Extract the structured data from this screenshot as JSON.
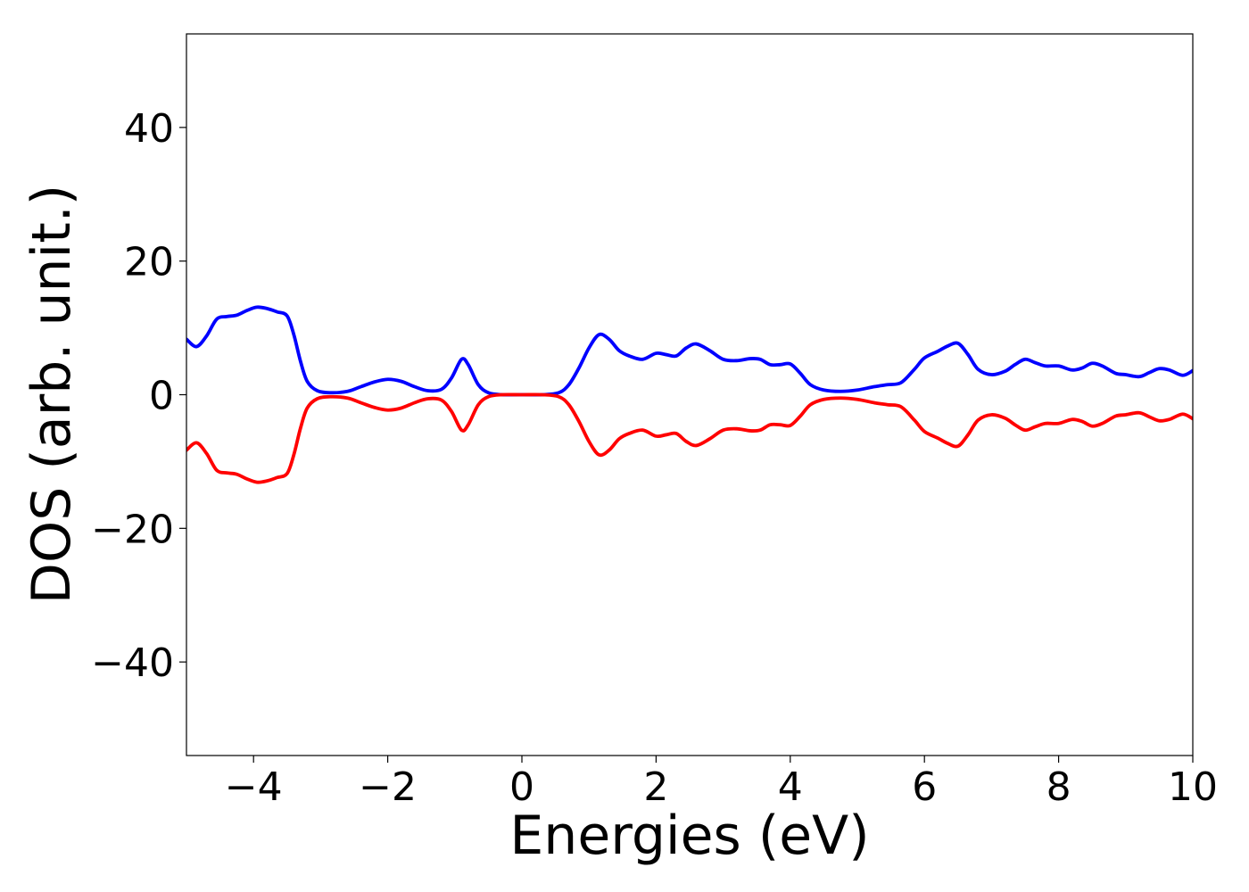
{
  "chart_data": {
    "type": "line",
    "title": "",
    "xlabel": "Energies (eV)",
    "ylabel": "DOS (arb. unit.)",
    "xlim": [
      -5,
      10
    ],
    "ylim": [
      -54,
      54
    ],
    "xticks": [
      -4,
      -2,
      0,
      2,
      4,
      6,
      8,
      10
    ],
    "xtick_labels": [
      "−4",
      "−2",
      "0",
      "2",
      "4",
      "6",
      "8",
      "10"
    ],
    "yticks": [
      -40,
      -20,
      0,
      20,
      40
    ],
    "ytick_labels": [
      "−40",
      "−20",
      "0",
      "20",
      "40"
    ],
    "grid": false,
    "series": [
      {
        "color": "#0000ff",
        "points": [
          [
            -5.0,
            8.3
          ],
          [
            -4.85,
            7.2
          ],
          [
            -4.7,
            8.8
          ],
          [
            -4.55,
            11.3
          ],
          [
            -4.4,
            11.7
          ],
          [
            -4.25,
            11.9
          ],
          [
            -4.1,
            12.6
          ],
          [
            -3.95,
            13.1
          ],
          [
            -3.8,
            12.9
          ],
          [
            -3.65,
            12.4
          ],
          [
            -3.5,
            11.8
          ],
          [
            -3.4,
            9.0
          ],
          [
            -3.3,
            5.0
          ],
          [
            -3.2,
            2.0
          ],
          [
            -3.05,
            0.6
          ],
          [
            -2.85,
            0.3
          ],
          [
            -2.6,
            0.5
          ],
          [
            -2.4,
            1.2
          ],
          [
            -2.2,
            1.9
          ],
          [
            -2.0,
            2.3
          ],
          [
            -1.8,
            2.0
          ],
          [
            -1.6,
            1.2
          ],
          [
            -1.4,
            0.6
          ],
          [
            -1.2,
            0.8
          ],
          [
            -1.05,
            2.5
          ],
          [
            -0.9,
            5.3
          ],
          [
            -0.8,
            4.5
          ],
          [
            -0.65,
            1.5
          ],
          [
            -0.5,
            0.3
          ],
          [
            -0.3,
            0.0
          ],
          [
            0.0,
            0.0
          ],
          [
            0.3,
            0.0
          ],
          [
            0.55,
            0.3
          ],
          [
            0.7,
            1.5
          ],
          [
            0.85,
            4.0
          ],
          [
            1.0,
            7.0
          ],
          [
            1.15,
            9.0
          ],
          [
            1.3,
            8.3
          ],
          [
            1.45,
            6.6
          ],
          [
            1.6,
            5.8
          ],
          [
            1.8,
            5.3
          ],
          [
            2.0,
            6.2
          ],
          [
            2.15,
            6.0
          ],
          [
            2.3,
            5.8
          ],
          [
            2.45,
            7.0
          ],
          [
            2.6,
            7.6
          ],
          [
            2.8,
            6.6
          ],
          [
            3.0,
            5.3
          ],
          [
            3.2,
            5.1
          ],
          [
            3.4,
            5.4
          ],
          [
            3.55,
            5.3
          ],
          [
            3.7,
            4.5
          ],
          [
            3.85,
            4.5
          ],
          [
            4.0,
            4.6
          ],
          [
            4.15,
            3.2
          ],
          [
            4.3,
            1.5
          ],
          [
            4.5,
            0.7
          ],
          [
            4.75,
            0.5
          ],
          [
            5.0,
            0.7
          ],
          [
            5.25,
            1.2
          ],
          [
            5.45,
            1.5
          ],
          [
            5.65,
            1.8
          ],
          [
            5.85,
            3.8
          ],
          [
            6.0,
            5.5
          ],
          [
            6.2,
            6.5
          ],
          [
            6.35,
            7.3
          ],
          [
            6.5,
            7.7
          ],
          [
            6.65,
            6.0
          ],
          [
            6.8,
            3.8
          ],
          [
            7.0,
            3.0
          ],
          [
            7.2,
            3.5
          ],
          [
            7.35,
            4.5
          ],
          [
            7.5,
            5.3
          ],
          [
            7.65,
            4.8
          ],
          [
            7.8,
            4.3
          ],
          [
            8.0,
            4.3
          ],
          [
            8.2,
            3.7
          ],
          [
            8.35,
            4.0
          ],
          [
            8.5,
            4.7
          ],
          [
            8.65,
            4.3
          ],
          [
            8.85,
            3.2
          ],
          [
            9.0,
            3.0
          ],
          [
            9.2,
            2.7
          ],
          [
            9.35,
            3.3
          ],
          [
            9.5,
            3.9
          ],
          [
            9.65,
            3.7
          ],
          [
            9.85,
            2.9
          ],
          [
            10.0,
            3.6
          ]
        ]
      },
      {
        "color": "#ff0000",
        "points": [
          [
            -5.0,
            -8.3
          ],
          [
            -4.85,
            -7.2
          ],
          [
            -4.7,
            -8.8
          ],
          [
            -4.55,
            -11.3
          ],
          [
            -4.4,
            -11.7
          ],
          [
            -4.25,
            -11.9
          ],
          [
            -4.1,
            -12.6
          ],
          [
            -3.95,
            -13.1
          ],
          [
            -3.8,
            -12.9
          ],
          [
            -3.65,
            -12.4
          ],
          [
            -3.5,
            -11.8
          ],
          [
            -3.4,
            -9.0
          ],
          [
            -3.3,
            -5.0
          ],
          [
            -3.2,
            -2.0
          ],
          [
            -3.05,
            -0.6
          ],
          [
            -2.85,
            -0.3
          ],
          [
            -2.6,
            -0.5
          ],
          [
            -2.4,
            -1.2
          ],
          [
            -2.2,
            -1.9
          ],
          [
            -2.0,
            -2.3
          ],
          [
            -1.8,
            -2.0
          ],
          [
            -1.6,
            -1.2
          ],
          [
            -1.4,
            -0.6
          ],
          [
            -1.2,
            -0.8
          ],
          [
            -1.05,
            -2.5
          ],
          [
            -0.9,
            -5.3
          ],
          [
            -0.8,
            -4.5
          ],
          [
            -0.65,
            -1.5
          ],
          [
            -0.5,
            -0.3
          ],
          [
            -0.3,
            0.0
          ],
          [
            0.0,
            0.0
          ],
          [
            0.3,
            0.0
          ],
          [
            0.55,
            -0.3
          ],
          [
            0.7,
            -1.5
          ],
          [
            0.85,
            -4.0
          ],
          [
            1.0,
            -7.0
          ],
          [
            1.15,
            -9.0
          ],
          [
            1.3,
            -8.3
          ],
          [
            1.45,
            -6.6
          ],
          [
            1.6,
            -5.8
          ],
          [
            1.8,
            -5.3
          ],
          [
            2.0,
            -6.2
          ],
          [
            2.15,
            -6.0
          ],
          [
            2.3,
            -5.8
          ],
          [
            2.45,
            -7.0
          ],
          [
            2.6,
            -7.6
          ],
          [
            2.8,
            -6.6
          ],
          [
            3.0,
            -5.3
          ],
          [
            3.2,
            -5.1
          ],
          [
            3.4,
            -5.4
          ],
          [
            3.55,
            -5.3
          ],
          [
            3.7,
            -4.5
          ],
          [
            3.85,
            -4.5
          ],
          [
            4.0,
            -4.6
          ],
          [
            4.15,
            -3.2
          ],
          [
            4.3,
            -1.5
          ],
          [
            4.5,
            -0.7
          ],
          [
            4.75,
            -0.5
          ],
          [
            5.0,
            -0.7
          ],
          [
            5.25,
            -1.2
          ],
          [
            5.45,
            -1.5
          ],
          [
            5.65,
            -1.8
          ],
          [
            5.85,
            -3.8
          ],
          [
            6.0,
            -5.5
          ],
          [
            6.2,
            -6.5
          ],
          [
            6.35,
            -7.3
          ],
          [
            6.5,
            -7.7
          ],
          [
            6.65,
            -6.0
          ],
          [
            6.8,
            -3.8
          ],
          [
            7.0,
            -3.0
          ],
          [
            7.2,
            -3.5
          ],
          [
            7.35,
            -4.5
          ],
          [
            7.5,
            -5.3
          ],
          [
            7.65,
            -4.8
          ],
          [
            7.8,
            -4.3
          ],
          [
            8.0,
            -4.3
          ],
          [
            8.2,
            -3.7
          ],
          [
            8.35,
            -4.0
          ],
          [
            8.5,
            -4.7
          ],
          [
            8.65,
            -4.3
          ],
          [
            8.85,
            -3.2
          ],
          [
            9.0,
            -3.0
          ],
          [
            9.2,
            -2.7
          ],
          [
            9.35,
            -3.3
          ],
          [
            9.5,
            -3.9
          ],
          [
            9.65,
            -3.7
          ],
          [
            9.85,
            -2.9
          ],
          [
            10.0,
            -3.6
          ]
        ]
      }
    ]
  }
}
